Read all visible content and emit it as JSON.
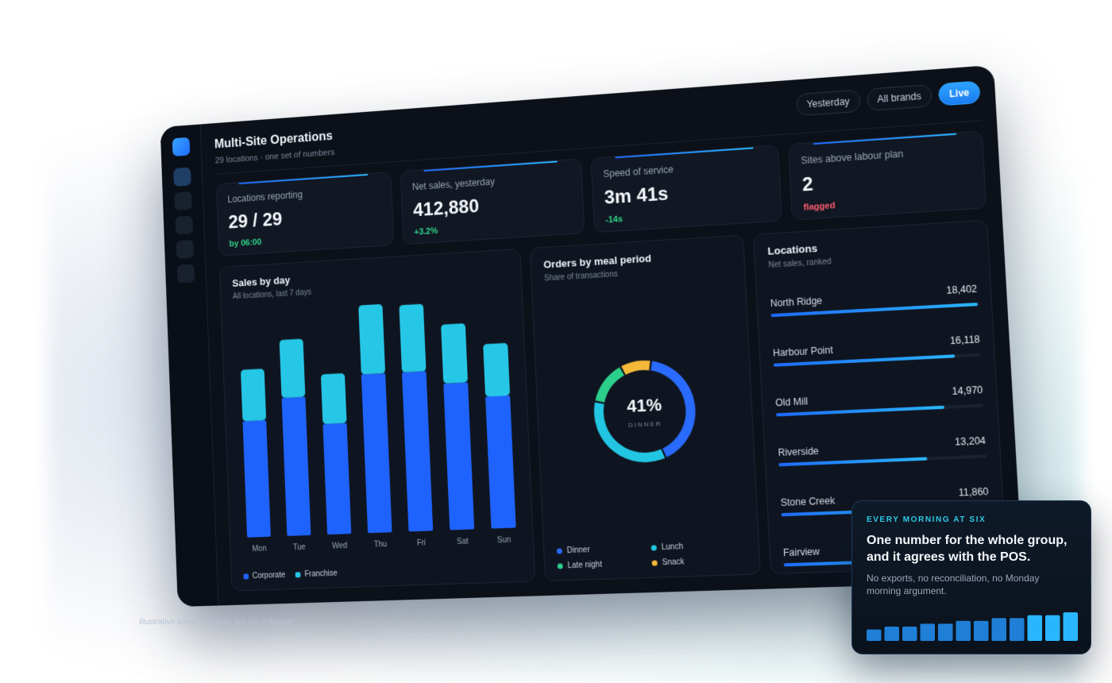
{
  "header": {
    "title": "Multi-Site Operations",
    "subtitle": "29 locations · one set of numbers",
    "filters": [
      "Yesterday",
      "All brands"
    ],
    "live_label": "Live"
  },
  "kpis": [
    {
      "label": "Locations reporting",
      "value": "29 / 29",
      "delta": "by 06:00",
      "tone": "positive"
    },
    {
      "label": "Net sales, yesterday",
      "value": "412,880",
      "delta": "+3.2%",
      "tone": "positive"
    },
    {
      "label": "Speed of service",
      "value": "3m 41s",
      "delta": "-14s",
      "tone": "positive"
    },
    {
      "label": "Sites above labour plan",
      "value": "2",
      "delta": "flagged",
      "tone": "negative"
    }
  ],
  "sales_card": {
    "title": "Sales by day",
    "subtitle": "All locations, last 7 days"
  },
  "meal_card": {
    "title": "Orders by meal period",
    "subtitle": "Share of transactions"
  },
  "locations_card": {
    "title": "Locations",
    "subtitle": "Net sales, ranked"
  },
  "chart_data": [
    {
      "type": "bar",
      "stacked": true,
      "categories": [
        "Mon",
        "Tue",
        "Wed",
        "Thu",
        "Fri",
        "Sat",
        "Sun"
      ],
      "series": [
        {
          "name": "Corporate",
          "color": "#1f63ff",
          "values": [
            54,
            64,
            51,
            73,
            73,
            67,
            60
          ]
        },
        {
          "name": "Franchise",
          "color": "#26c7e6",
          "values": [
            24,
            27,
            23,
            32,
            31,
            27,
            24
          ]
        }
      ],
      "grid": false,
      "legend": "bottom-left"
    },
    {
      "type": "pie",
      "donut": true,
      "center_value": "41%",
      "center_label": "DINNER",
      "slices": [
        {
          "name": "Dinner",
          "value": 41,
          "color": "#2a6bff"
        },
        {
          "name": "Lunch",
          "value": 35,
          "color": "#22c6e3"
        },
        {
          "name": "Late night",
          "value": 14,
          "color": "#2bcf8b"
        },
        {
          "name": "Snack",
          "value": 10,
          "color": "#f5b93a"
        }
      ],
      "legend": "bottom"
    }
  ],
  "locations": [
    {
      "name": "North Ridge",
      "value": "18,402",
      "share": 1.0
    },
    {
      "name": "Harbour Point",
      "value": "16,118",
      "share": 0.876
    },
    {
      "name": "Old Mill",
      "value": "14,970",
      "share": 0.813
    },
    {
      "name": "Riverside",
      "value": "13,204",
      "share": 0.718
    },
    {
      "name": "Stone Creek",
      "value": "11,860",
      "share": 0.645
    },
    {
      "name": "Fairview",
      "value": "",
      "share": 0.6
    }
  ],
  "footnote": "Illustrative screen · figures are not a dataset",
  "callout": {
    "eyebrow": "EVERY MORNING AT SIX",
    "headline": "One number for the whole group, and it agrees with the POS.",
    "body": "No exports, no reconciliation, no Monday morning argument.",
    "spark_values": [
      4,
      5,
      5,
      6,
      6,
      7,
      7,
      8,
      8,
      9,
      9,
      10
    ]
  }
}
